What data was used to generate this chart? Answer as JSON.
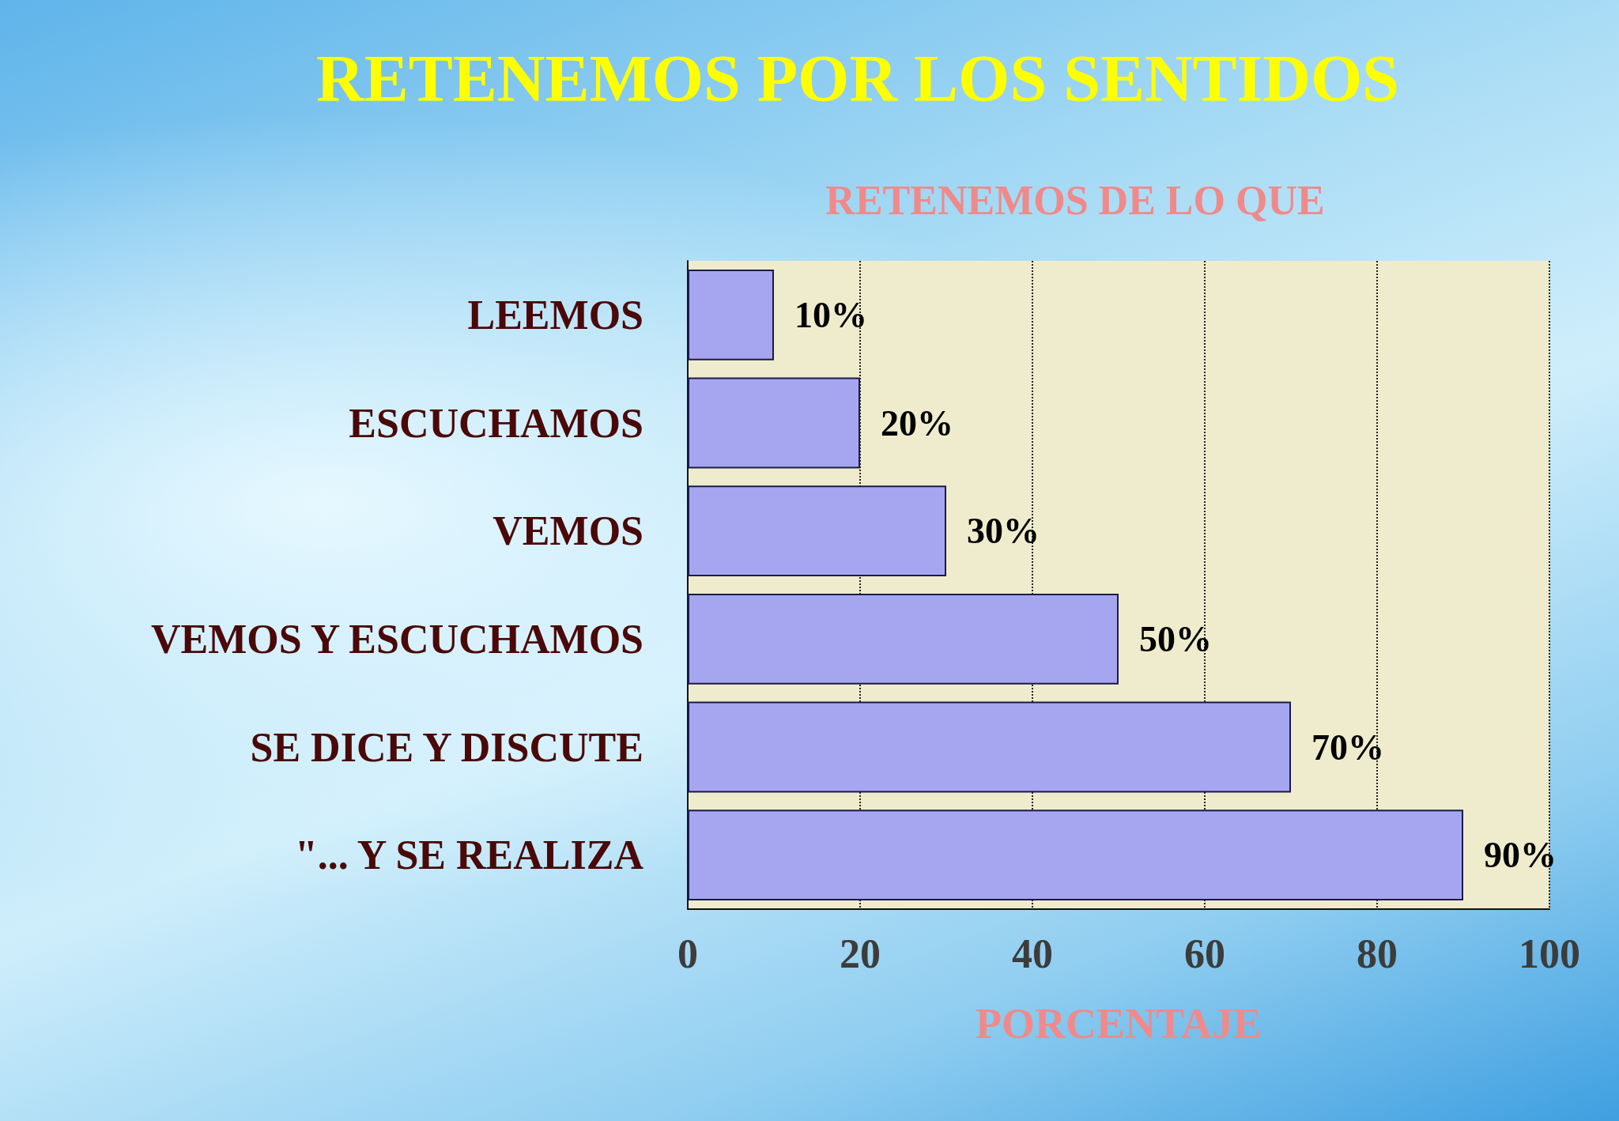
{
  "chart_data": {
    "type": "bar",
    "orientation": "horizontal",
    "title": "RETENEMOS POR LOS SENTIDOS",
    "subtitle": "RETENEMOS DE LO QUE",
    "xlabel": "PORCENTAJE",
    "categories": [
      "LEEMOS",
      "ESCUCHAMOS",
      "VEMOS",
      "VEMOS Y ESCUCHAMOS",
      "SE DICE Y DISCUTE",
      "\"... Y SE REALIZA"
    ],
    "values": [
      10,
      20,
      30,
      50,
      70,
      90
    ],
    "value_labels": [
      "10%",
      "20%",
      "30%",
      "50%",
      "70%",
      "90%"
    ],
    "color": "#a6a6f0",
    "xlim": [
      0,
      100
    ],
    "xticks": [
      0,
      20,
      40,
      60,
      80,
      100
    ],
    "grid": "x"
  }
}
